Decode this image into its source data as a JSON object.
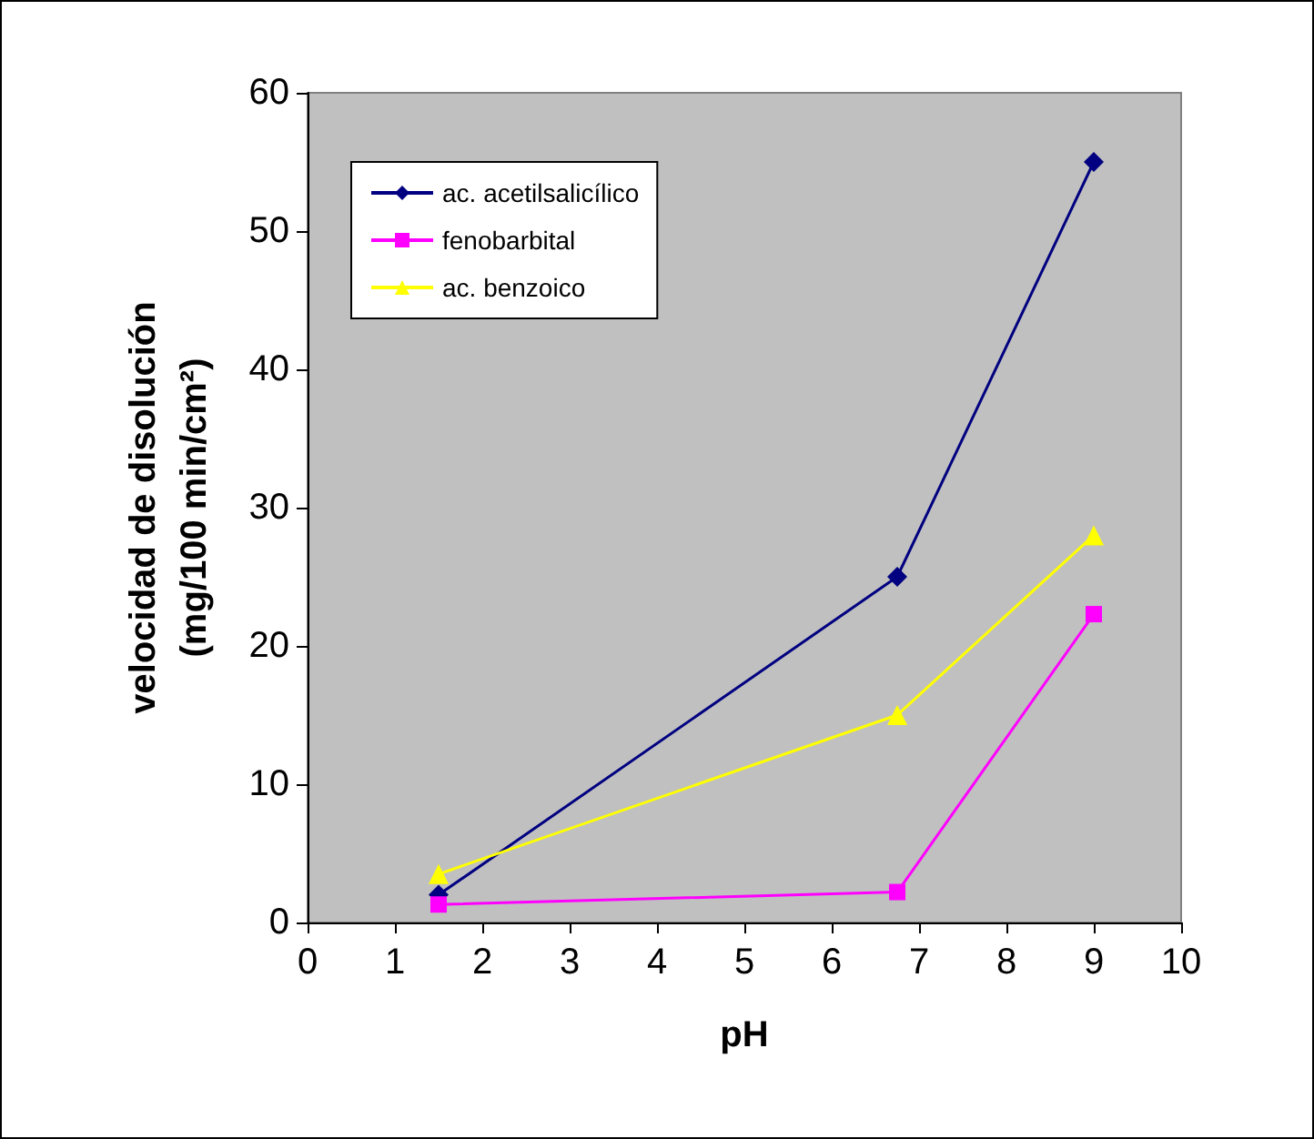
{
  "chart_data": {
    "type": "line",
    "xlabel": "pH",
    "ylabel": "velocidad de disolución\n(mg/100 min/cm²)",
    "series": [
      {
        "name": "ac. acetilsalicílico",
        "color": "#000080",
        "marker": "diamond",
        "x": [
          1.5,
          6.75,
          9
        ],
        "values": [
          2,
          25,
          55
        ]
      },
      {
        "name": "fenobarbital",
        "color": "#ff00ff",
        "marker": "square",
        "x": [
          1.5,
          6.75,
          9
        ],
        "values": [
          1.3,
          2.2,
          22.3
        ]
      },
      {
        "name": "ac. benzoico",
        "color": "#ffff00",
        "marker": "triangle",
        "x": [
          1.5,
          6.75,
          9
        ],
        "values": [
          3.5,
          15,
          28
        ]
      }
    ],
    "xlim": [
      0,
      10
    ],
    "xticks": [
      0,
      1,
      2,
      3,
      4,
      5,
      6,
      7,
      8,
      9,
      10
    ],
    "ylim": [
      0,
      60
    ],
    "yticks": [
      0,
      10,
      20,
      30,
      40,
      50,
      60
    ],
    "grid": false,
    "legend": "top left",
    "line_style": "solid"
  }
}
